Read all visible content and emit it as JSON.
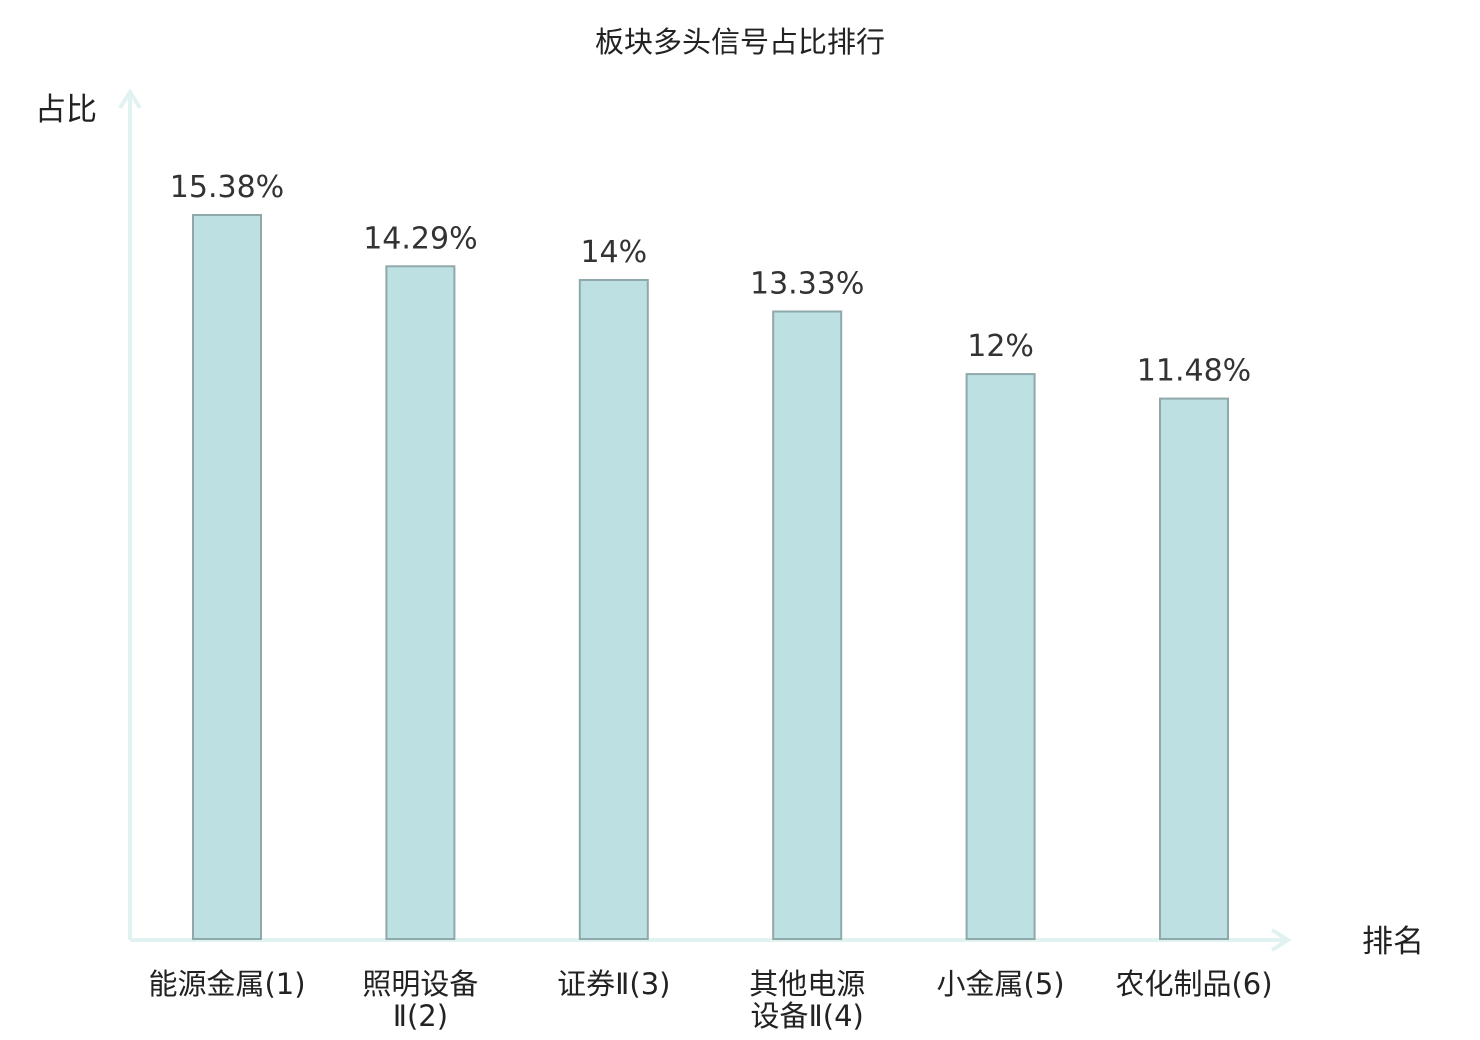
{
  "chart_data": {
    "type": "bar",
    "title": "板块多头信号占比排行",
    "xlabel": "排名",
    "ylabel": "占比",
    "categories": [
      [
        "能源金属(1)"
      ],
      [
        "照明设备",
        "Ⅱ(2)"
      ],
      [
        "证券Ⅱ(3)"
      ],
      [
        "其他电源",
        "设备Ⅱ(4)"
      ],
      [
        "小金属(5)"
      ],
      [
        "农化制品(6)"
      ]
    ],
    "category_colors": [
      "#222222",
      "#222222",
      "#222222",
      "#222222",
      "#222222",
      "#e00000"
    ],
    "values": [
      15.38,
      14.29,
      14,
      13.33,
      12,
      11.48
    ],
    "value_labels": [
      "15.38%",
      "14.29%",
      "14%",
      "13.33%",
      "12%",
      "11.48%"
    ],
    "ylim": [
      0,
      15.38
    ],
    "grid": false,
    "colors": {
      "bar_fill": "#bde0e2",
      "bar_stroke": "#8fa8aa",
      "axis": "#e1f3f1",
      "highlight": "#e00000"
    }
  }
}
